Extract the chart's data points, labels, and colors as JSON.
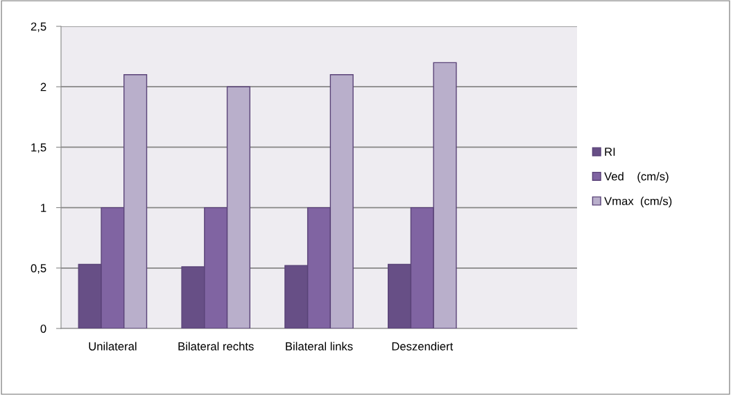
{
  "chart_data": {
    "type": "bar",
    "categories": [
      "Unilateral",
      "Bilateral rechts",
      "Bilateral links",
      "Deszendiert",
      null
    ],
    "series": [
      {
        "name": "RI",
        "color": "#674f86",
        "values": [
          0.53,
          0.51,
          0.52,
          0.53,
          null
        ]
      },
      {
        "name": "Ved    (cm/s)",
        "color": "#8064a2",
        "values": [
          1,
          1,
          1,
          1,
          null
        ]
      },
      {
        "name": "Vmax  (cm/s)",
        "color": "#b9afcb",
        "values": [
          2.1,
          2.0,
          2.1,
          2.2,
          null
        ]
      }
    ],
    "ylim": [
      0,
      2.5
    ],
    "yticks": [
      0,
      {
        "value": 0.5,
        "label": "0,5"
      },
      1,
      {
        "value": 1.5,
        "label": "1,5"
      },
      2,
      {
        "value": 2.5,
        "label": "2,5"
      }
    ],
    "grid": "y",
    "legend": "right"
  }
}
